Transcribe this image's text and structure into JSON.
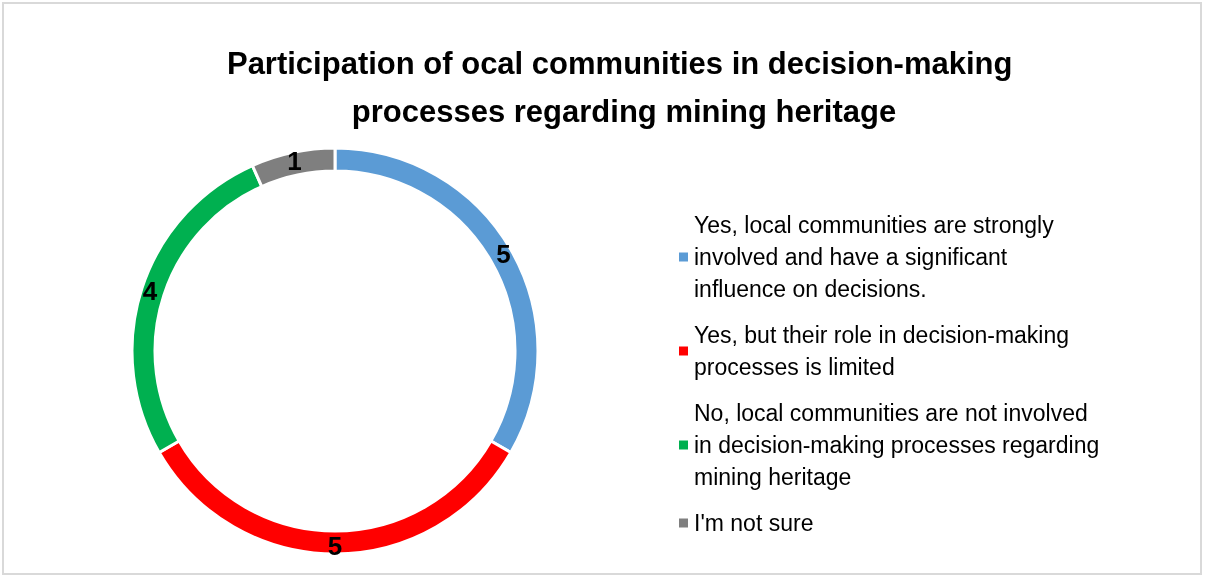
{
  "chart_data": {
    "type": "donut",
    "title": "Participation of ocal communities in decision-making processes regarding mining heritage",
    "categories": [
      "Yes, local communities are strongly involved and have a significant influence on decisions.",
      "Yes, but their role in decision-making processes is limited",
      "No, local communities are not involved in decision-making processes regarding mining heritage",
      "I'm not sure"
    ],
    "values": [
      5,
      5,
      4,
      1
    ],
    "colors": [
      "#5b9bd5",
      "#ff0000",
      "#00b050",
      "#7f7f7f"
    ],
    "data_labels": true,
    "legend": "right"
  }
}
